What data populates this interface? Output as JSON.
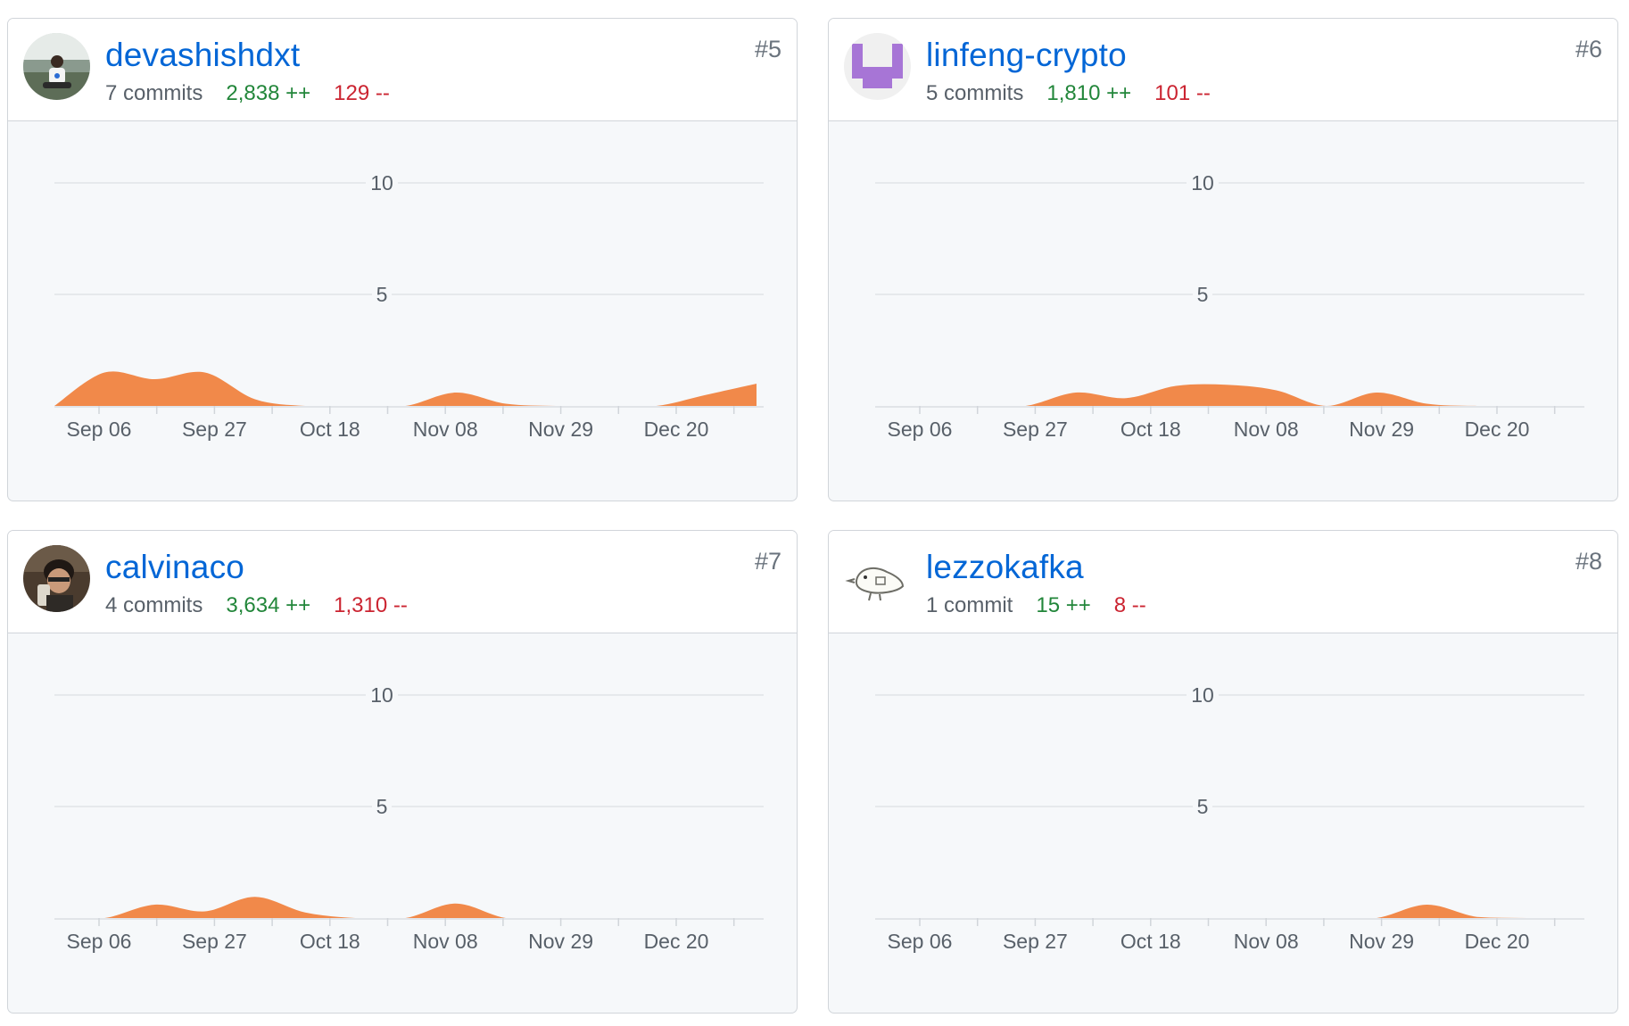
{
  "contributors": [
    {
      "username": "devashishdxt",
      "commits": "7 commits",
      "additions": "2,838 ++",
      "deletions": "129 --",
      "rank": "#5",
      "avatar_icon": "person-photo-avatar"
    },
    {
      "username": "linfeng-crypto",
      "commits": "5 commits",
      "additions": "1,810 ++",
      "deletions": "101 --",
      "rank": "#6",
      "avatar_icon": "identicon-avatar"
    },
    {
      "username": "calvinaco",
      "commits": "4 commits",
      "additions": "3,634 ++",
      "deletions": "1,310 --",
      "rank": "#7",
      "avatar_icon": "person-photo-avatar"
    },
    {
      "username": "lezzokafka",
      "commits": "1 commit",
      "additions": "15 ++",
      "deletions": "8 --",
      "rank": "#8",
      "avatar_icon": "bird-sketch-avatar"
    }
  ],
  "colors": {
    "link": "#0366d6",
    "additions": "#22863a",
    "deletions": "#cb2431",
    "area": "#f1894a",
    "card_bg": "#f6f8fa"
  },
  "chart_data": [
    {
      "type": "area",
      "x_labels": [
        "Sep 06",
        "Sep 27",
        "Oct 18",
        "Nov 08",
        "Nov 29",
        "Dec 20"
      ],
      "y_ticks": [
        5,
        10
      ],
      "ylim": [
        0,
        10
      ],
      "series": [
        {
          "values": [
            0,
            1.5,
            1.2,
            1.5,
            0.3,
            0,
            0,
            0,
            0.6,
            0.1,
            0,
            0,
            0,
            0.5,
            1.0
          ]
        }
      ]
    },
    {
      "type": "area",
      "x_labels": [
        "Sep 06",
        "Sep 27",
        "Oct 18",
        "Nov 08",
        "Nov 29",
        "Dec 20"
      ],
      "y_ticks": [
        5,
        10
      ],
      "ylim": [
        0,
        10
      ],
      "series": [
        {
          "values": [
            0,
            0,
            0,
            0,
            0.6,
            0.35,
            0.9,
            0.95,
            0.7,
            0,
            0.6,
            0.1,
            0,
            0,
            0
          ]
        }
      ]
    },
    {
      "type": "area",
      "x_labels": [
        "Sep 06",
        "Sep 27",
        "Oct 18",
        "Nov 08",
        "Nov 29",
        "Dec 20"
      ],
      "y_ticks": [
        5,
        10
      ],
      "ylim": [
        0,
        10
      ],
      "series": [
        {
          "values": [
            0,
            0,
            0.6,
            0.3,
            0.95,
            0.25,
            0,
            0,
            0.65,
            0,
            0,
            0,
            0,
            0,
            0
          ]
        }
      ]
    },
    {
      "type": "area",
      "x_labels": [
        "Sep 06",
        "Sep 27",
        "Oct 18",
        "Nov 08",
        "Nov 29",
        "Dec 20"
      ],
      "y_ticks": [
        5,
        10
      ],
      "ylim": [
        0,
        10
      ],
      "series": [
        {
          "values": [
            0,
            0,
            0,
            0,
            0,
            0,
            0,
            0,
            0,
            0,
            0,
            0.6,
            0.05,
            0,
            0
          ]
        }
      ]
    }
  ]
}
